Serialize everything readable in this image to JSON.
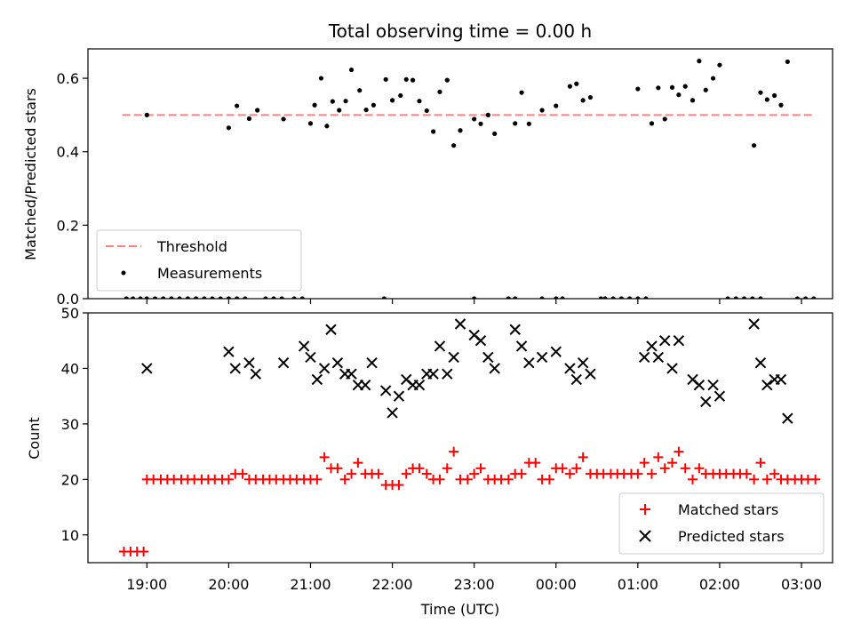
{
  "chart_data": [
    {
      "type": "scatter",
      "title": "Total observing time = 0.00 h",
      "xlabel": "",
      "ylabel": "Matched/Predicted stars",
      "xlim": [
        18.28,
        27.38
      ],
      "ylim": [
        0,
        0.68
      ],
      "yticks": [
        0.0,
        0.2,
        0.4,
        0.6
      ],
      "yticklabels": [
        "0.0",
        "0.2",
        "0.4",
        "0.6"
      ],
      "legend_position": "lower-left",
      "threshold": {
        "name": "Threshold",
        "value": 0.5,
        "x_range": [
          18.7,
          27.13
        ],
        "color": "#ff7f7f"
      },
      "series": [
        {
          "name": "Measurements",
          "color": "#000000",
          "x": [
            19.0,
            20.0,
            20.1,
            20.25,
            20.35,
            20.67,
            21.0,
            21.05,
            21.13,
            21.2,
            21.27,
            21.35,
            21.43,
            21.5,
            21.6,
            21.68,
            21.77,
            21.92,
            22.0,
            22.1,
            22.17,
            22.25,
            22.33,
            22.42,
            22.5,
            22.58,
            22.67,
            22.75,
            22.83,
            23.0,
            23.08,
            23.17,
            23.25,
            23.5,
            23.58,
            23.67,
            23.83,
            24.0,
            24.17,
            24.25,
            24.33,
            24.42,
            25.0,
            25.17,
            25.25,
            25.33,
            25.42,
            25.5,
            25.58,
            25.67,
            25.75,
            25.83,
            25.92,
            26.0,
            26.42,
            26.5,
            26.58,
            26.67,
            26.75,
            26.83,
            18.75,
            18.83,
            18.92,
            19.0,
            19.1,
            19.2,
            19.3,
            19.4,
            19.5,
            19.6,
            19.7,
            19.8,
            19.9,
            20.0,
            20.1,
            20.2,
            20.45,
            20.55,
            20.65,
            20.8,
            20.9,
            21.9,
            23.0,
            23.42,
            23.5,
            23.83,
            24.0,
            24.08,
            24.55,
            24.6,
            24.7,
            24.8,
            24.9,
            25.0,
            25.1,
            26.1,
            26.2,
            26.3,
            26.4,
            26.5,
            26.95,
            27.05,
            27.15
          ],
          "y": [
            0.5,
            0.465,
            0.525,
            0.49,
            0.513,
            0.489,
            0.477,
            0.527,
            0.6,
            0.47,
            0.537,
            0.513,
            0.538,
            0.623,
            0.567,
            0.514,
            0.527,
            0.597,
            0.54,
            0.553,
            0.597,
            0.595,
            0.538,
            0.512,
            0.455,
            0.563,
            0.595,
            0.417,
            0.458,
            0.489,
            0.476,
            0.5,
            0.449,
            0.477,
            0.561,
            0.476,
            0.513,
            0.525,
            0.578,
            0.585,
            0.54,
            0.548,
            0.571,
            0.477,
            0.574,
            0.489,
            0.575,
            0.555,
            0.578,
            0.54,
            0.647,
            0.568,
            0.6,
            0.636,
            0.417,
            0.561,
            0.542,
            0.553,
            0.527,
            0.645,
            0,
            0,
            0,
            0,
            0,
            0,
            0,
            0,
            0,
            0,
            0,
            0,
            0,
            0,
            0,
            0,
            0,
            0,
            0,
            0,
            0,
            0,
            0,
            0,
            0,
            0,
            0,
            0,
            0,
            0,
            0,
            0,
            0,
            0,
            0,
            0,
            0,
            0,
            0,
            0,
            0,
            0,
            0
          ]
        }
      ]
    },
    {
      "type": "scatter",
      "title": "",
      "xlabel": "Time (UTC)",
      "ylabel": "Count",
      "xlim": [
        18.28,
        27.38
      ],
      "ylim": [
        5,
        50
      ],
      "yticks": [
        10,
        20,
        30,
        40,
        50
      ],
      "yticklabels": [
        "10",
        "20",
        "30",
        "40",
        "50"
      ],
      "xticks": [
        19,
        20,
        21,
        22,
        23,
        24,
        25,
        26,
        27
      ],
      "xticklabels": [
        "19:00",
        "20:00",
        "21:00",
        "22:00",
        "23:00",
        "00:00",
        "01:00",
        "02:00",
        "03:00"
      ],
      "legend_position": "lower-right",
      "series": [
        {
          "name": "Matched stars",
          "color": "#ff0000",
          "marker": "plus",
          "x": [
            18.72,
            18.8,
            18.88,
            18.96,
            19.0,
            19.08,
            19.17,
            19.25,
            19.33,
            19.42,
            19.5,
            19.58,
            19.67,
            19.75,
            19.83,
            19.92,
            20.0,
            20.08,
            20.17,
            20.25,
            20.33,
            20.42,
            20.5,
            20.58,
            20.67,
            20.75,
            20.83,
            20.92,
            21.0,
            21.08,
            21.17,
            21.25,
            21.33,
            21.42,
            21.5,
            21.58,
            21.67,
            21.75,
            21.83,
            21.92,
            22.0,
            22.08,
            22.17,
            22.25,
            22.33,
            22.42,
            22.5,
            22.58,
            22.67,
            22.75,
            22.83,
            22.92,
            23.0,
            23.08,
            23.17,
            23.25,
            23.33,
            23.42,
            23.5,
            23.58,
            23.67,
            23.75,
            23.83,
            23.92,
            24.0,
            24.08,
            24.17,
            24.25,
            24.33,
            24.42,
            24.5,
            24.58,
            24.67,
            24.75,
            24.83,
            24.92,
            25.0,
            25.08,
            25.17,
            25.25,
            25.33,
            25.42,
            25.5,
            25.58,
            25.67,
            25.75,
            25.83,
            25.92,
            26.0,
            26.08,
            26.17,
            26.25,
            26.33,
            26.42,
            26.5,
            26.58,
            26.67,
            26.75,
            26.83,
            26.92,
            27.0,
            27.08,
            27.17
          ],
          "y": [
            7,
            7,
            7,
            7,
            20,
            20,
            20,
            20,
            20,
            20,
            20,
            20,
            20,
            20,
            20,
            20,
            20,
            21,
            21,
            20,
            20,
            20,
            20,
            20,
            20,
            20,
            20,
            20,
            20,
            20,
            24,
            22,
            22,
            20,
            21,
            23,
            21,
            21,
            21,
            19,
            19,
            19,
            21,
            22,
            22,
            21,
            20,
            20,
            22,
            25,
            20,
            20,
            21,
            22,
            20,
            20,
            20,
            20,
            21,
            21,
            23,
            23,
            20,
            20,
            22,
            22,
            21,
            22,
            24,
            21,
            21,
            21,
            21,
            21,
            21,
            21,
            21,
            23,
            21,
            24,
            22,
            23,
            25,
            22,
            20,
            22,
            21,
            21,
            21,
            21,
            21,
            21,
            21,
            20,
            23,
            20,
            21,
            20,
            20,
            20,
            20,
            20,
            20
          ]
        },
        {
          "name": "Predicted stars",
          "color": "#000000",
          "marker": "x",
          "x": [
            19.0,
            20.0,
            20.08,
            20.25,
            20.33,
            20.67,
            20.92,
            21.0,
            21.08,
            21.17,
            21.25,
            21.33,
            21.42,
            21.5,
            21.58,
            21.67,
            21.75,
            21.92,
            22.0,
            22.08,
            22.17,
            22.25,
            22.33,
            22.42,
            22.5,
            22.58,
            22.67,
            22.75,
            22.83,
            23.0,
            23.08,
            23.17,
            23.25,
            23.5,
            23.58,
            23.67,
            23.83,
            24.0,
            24.17,
            24.25,
            24.33,
            24.42,
            25.08,
            25.17,
            25.25,
            25.33,
            25.42,
            25.5,
            25.67,
            25.75,
            25.83,
            25.92,
            26.0,
            26.42,
            26.5,
            26.58,
            26.67,
            26.75,
            26.83
          ],
          "y": [
            40,
            43,
            40,
            41,
            39,
            41,
            44,
            42,
            38,
            40,
            47,
            41,
            39,
            39,
            37,
            37,
            41,
            36,
            32,
            35,
            38,
            37,
            37,
            39,
            39,
            44,
            39,
            42,
            48,
            46,
            45,
            42,
            40,
            47,
            44,
            41,
            42,
            43,
            40,
            38,
            41,
            39,
            42,
            44,
            42,
            45,
            40,
            45,
            38,
            37,
            34,
            37,
            35,
            48,
            41,
            37,
            38,
            38,
            31
          ]
        }
      ]
    }
  ]
}
